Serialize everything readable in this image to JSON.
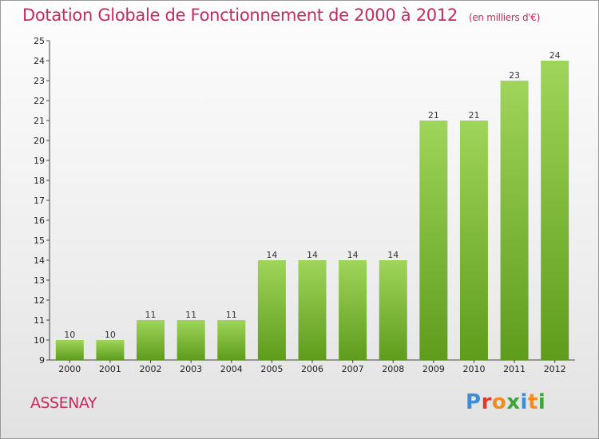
{
  "title": "Dotation Globale de Fonctionnement de 2000 à 2012",
  "subtitle": "(en milliers d'€)",
  "city": "ASSENAY",
  "logo": {
    "text": "Proxiti",
    "colors": [
      "#3a8fd6",
      "#e23a2a",
      "#f28c1e",
      "#3aa63a",
      "#3a8fd6",
      "#f28c1e",
      "#3aa63a"
    ]
  },
  "colors": {
    "title": "#c72a5e",
    "bar_top": "#9fd55a",
    "bar_bottom": "#5e9c1c"
  },
  "chart_data": {
    "type": "bar",
    "categories": [
      "2000",
      "2001",
      "2002",
      "2003",
      "2004",
      "2005",
      "2006",
      "2007",
      "2008",
      "2009",
      "2010",
      "2011",
      "2012"
    ],
    "values": [
      10,
      10,
      11,
      11,
      11,
      14,
      14,
      14,
      14,
      21,
      21,
      23,
      24
    ],
    "data_labels": [
      "10",
      "10",
      "11",
      "11",
      "11",
      "14",
      "14",
      "14",
      "14",
      "21",
      "21",
      "23",
      "24"
    ],
    "ylim": [
      9,
      25
    ],
    "yticks": [
      9,
      10,
      11,
      12,
      13,
      14,
      15,
      16,
      17,
      18,
      19,
      20,
      21,
      22,
      23,
      24,
      25
    ],
    "ytick_labels": [
      "9",
      "10",
      "11",
      "12",
      "13",
      "14",
      "15",
      "16",
      "17",
      "18",
      "19",
      "20",
      "21",
      "22",
      "23",
      "24",
      "25"
    ],
    "grid": false,
    "legend": "none"
  }
}
